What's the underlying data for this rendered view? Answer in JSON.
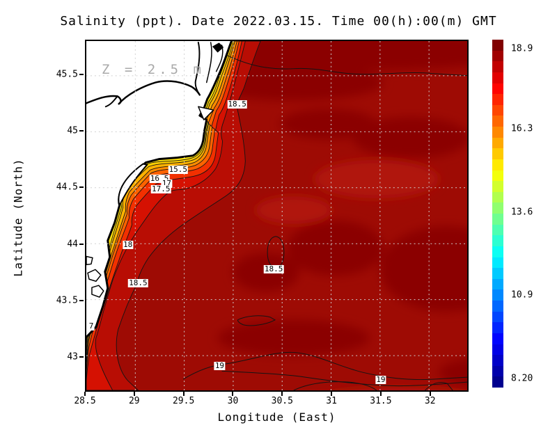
{
  "title": "Salinity (ppt). Date 2022.03.15. Time 00(h):00(m) GMT",
  "annotation": "Z = 2.5 m",
  "chart_data": {
    "type": "heatmap",
    "variable": "Salinity (ppt)",
    "date": "2022.03.15",
    "time": "00(h):00(m) GMT",
    "depth_annotation": "Z = 2.5 m",
    "xlabel": "Longitude (East)",
    "ylabel": "Latitude (North)",
    "xlim": [
      28.5,
      32.39
    ],
    "ylim": [
      42.69,
      45.81
    ],
    "grid": true,
    "legend_position": "right",
    "x_ticks": {
      "labels": [
        "28.5",
        "29",
        "29.5",
        "30",
        "30.5",
        "31",
        "31.5",
        "32"
      ],
      "values": [
        28.5,
        29,
        29.5,
        30,
        30.5,
        31,
        31.5,
        32
      ]
    },
    "y_ticks": {
      "labels": [
        "43",
        "43.5",
        "44",
        "44.5",
        "45",
        "45.5"
      ],
      "values": [
        43,
        43.5,
        44,
        44.5,
        45,
        45.5
      ]
    },
    "colorbar": {
      "tick_labels": [
        "18.9",
        "16.3",
        "13.6",
        "10.9",
        "8.20"
      ],
      "tick_values": [
        18.9,
        16.3,
        13.6,
        10.9,
        8.2
      ],
      "range": [
        8.2,
        18.9
      ]
    },
    "contour_levels": [
      7,
      15.5,
      16.5,
      17,
      17.5,
      18,
      18.5,
      19
    ],
    "contour_labels": [
      {
        "text": "18.5",
        "fx": 0.396,
        "fy": 0.182
      },
      {
        "text": "15.5",
        "fx": 0.241,
        "fy": 0.368
      },
      {
        "text": "16.5",
        "fx": 0.192,
        "fy": 0.395
      },
      {
        "text": "17",
        "fx": 0.211,
        "fy": 0.409
      },
      {
        "text": "17.5",
        "fx": 0.196,
        "fy": 0.425
      },
      {
        "text": "18",
        "fx": 0.109,
        "fy": 0.583
      },
      {
        "text": "18.5",
        "fx": 0.136,
        "fy": 0.694
      },
      {
        "text": "7",
        "fx": 0.013,
        "fy": 0.816
      },
      {
        "text": "18.5",
        "fx": 0.492,
        "fy": 0.654
      },
      {
        "text": "19",
        "fx": 0.35,
        "fy": 0.931
      },
      {
        "text": "19",
        "fx": 0.773,
        "fy": 0.97
      }
    ],
    "palette": {
      "sea_base": "#9e0b04",
      "sea_dark": "#8b0603",
      "sea_light": "#b01208",
      "band_18_185": "#b80d04",
      "band_175_18": "#d51102",
      "band_17_175": "#f23000",
      "band_165_17": "#fe6200",
      "band_16_165": "#ff8c00",
      "band_155_16": "#ffb200",
      "band_15_155": "#ffd000",
      "band_coast": "#ffe30a",
      "shore_green": "#21b45a",
      "land": "#ffffff",
      "coastline": "#000000",
      "gridline": "#d0d0d0",
      "jet_stops": [
        [
          0,
          "#00008f"
        ],
        [
          0.125,
          "#0000ff"
        ],
        [
          0.375,
          "#00ffff"
        ],
        [
          0.625,
          "#ffff00"
        ],
        [
          0.875,
          "#ff0000"
        ],
        [
          1,
          "#800000"
        ]
      ]
    }
  }
}
